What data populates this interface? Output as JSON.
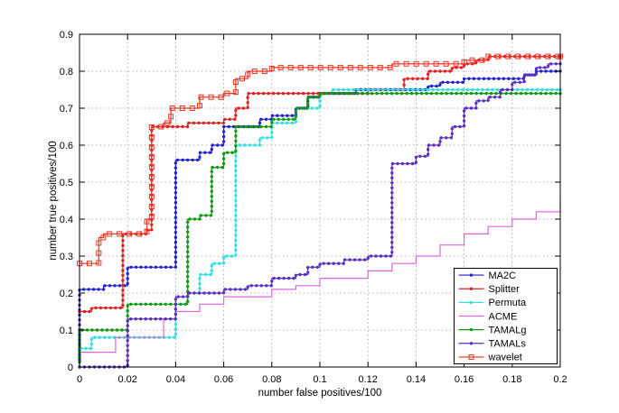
{
  "figure": {
    "background": "#ffffff",
    "axes_border_color": "#000000",
    "grid_color": "#9a9a9a"
  },
  "chart_data": {
    "type": "line",
    "step": true,
    "title": "",
    "xlabel": "number false positives/100",
    "ylabel": "number true positives/100",
    "xlim": [
      0,
      0.2
    ],
    "ylim": [
      0,
      0.9
    ],
    "grid": true,
    "legend_position": "lower right",
    "xticks": [
      0,
      0.02,
      0.04,
      0.06,
      0.08,
      0.1,
      0.12,
      0.14,
      0.16,
      0.18,
      0.2
    ],
    "xtick_labels": [
      "0",
      "0.02",
      "0.04",
      "0.06",
      "0.08",
      "0.1",
      "0.12",
      "0.14",
      "0.16",
      "0.18",
      "0.2"
    ],
    "yticks": [
      0,
      0.1,
      0.2,
      0.3,
      0.4,
      0.5,
      0.6,
      0.7,
      0.8,
      0.9
    ],
    "ytick_labels": [
      "0",
      "0.1",
      "0.2",
      "0.3",
      "0.4",
      "0.5",
      "0.6",
      "0.7",
      "0.8",
      "0.9"
    ],
    "series": [
      {
        "name": "MA2C",
        "color": "#2222cc",
        "marker": "dot",
        "points": [
          [
            0,
            0.02
          ],
          [
            0,
            0.21
          ],
          [
            0.01,
            0.21
          ],
          [
            0.01,
            0.22
          ],
          [
            0.02,
            0.22
          ],
          [
            0.02,
            0.27
          ],
          [
            0.04,
            0.27
          ],
          [
            0.04,
            0.56
          ],
          [
            0.05,
            0.56
          ],
          [
            0.05,
            0.58
          ],
          [
            0.055,
            0.58
          ],
          [
            0.055,
            0.6
          ],
          [
            0.06,
            0.6
          ],
          [
            0.06,
            0.65
          ],
          [
            0.075,
            0.65
          ],
          [
            0.075,
            0.67
          ],
          [
            0.08,
            0.67
          ],
          [
            0.08,
            0.68
          ],
          [
            0.09,
            0.68
          ],
          [
            0.09,
            0.7
          ],
          [
            0.095,
            0.7
          ],
          [
            0.095,
            0.73
          ],
          [
            0.1,
            0.73
          ],
          [
            0.1,
            0.74
          ],
          [
            0.115,
            0.74
          ],
          [
            0.115,
            0.75
          ],
          [
            0.145,
            0.75
          ],
          [
            0.145,
            0.76
          ],
          [
            0.15,
            0.76
          ],
          [
            0.15,
            0.77
          ],
          [
            0.16,
            0.77
          ],
          [
            0.16,
            0.78
          ],
          [
            0.185,
            0.78
          ],
          [
            0.185,
            0.79
          ],
          [
            0.19,
            0.79
          ],
          [
            0.19,
            0.8
          ],
          [
            0.2,
            0.8
          ]
        ]
      },
      {
        "name": "Splitter",
        "color": "#dd2222",
        "marker": "dot",
        "points": [
          [
            0,
            0.15
          ],
          [
            0.005,
            0.15
          ],
          [
            0.005,
            0.16
          ],
          [
            0.018,
            0.16
          ],
          [
            0.018,
            0.36
          ],
          [
            0.028,
            0.36
          ],
          [
            0.028,
            0.37
          ],
          [
            0.03,
            0.37
          ],
          [
            0.03,
            0.65
          ],
          [
            0.045,
            0.65
          ],
          [
            0.045,
            0.66
          ],
          [
            0.06,
            0.66
          ],
          [
            0.06,
            0.67
          ],
          [
            0.065,
            0.67
          ],
          [
            0.065,
            0.7
          ],
          [
            0.07,
            0.7
          ],
          [
            0.07,
            0.74
          ],
          [
            0.12,
            0.74
          ],
          [
            0.12,
            0.75
          ],
          [
            0.135,
            0.75
          ],
          [
            0.135,
            0.78
          ],
          [
            0.145,
            0.78
          ],
          [
            0.145,
            0.8
          ],
          [
            0.155,
            0.8
          ],
          [
            0.155,
            0.81
          ],
          [
            0.16,
            0.81
          ],
          [
            0.16,
            0.82
          ],
          [
            0.165,
            0.82
          ],
          [
            0.165,
            0.83
          ],
          [
            0.17,
            0.83
          ],
          [
            0.17,
            0.84
          ],
          [
            0.2,
            0.84
          ]
        ]
      },
      {
        "name": "Permuta",
        "color": "#3adede",
        "marker": "dot",
        "points": [
          [
            0,
            0
          ],
          [
            0,
            0.05
          ],
          [
            0.005,
            0.05
          ],
          [
            0.005,
            0.08
          ],
          [
            0.04,
            0.08
          ],
          [
            0.04,
            0.17
          ],
          [
            0.045,
            0.17
          ],
          [
            0.045,
            0.2
          ],
          [
            0.05,
            0.2
          ],
          [
            0.05,
            0.25
          ],
          [
            0.055,
            0.25
          ],
          [
            0.055,
            0.28
          ],
          [
            0.06,
            0.28
          ],
          [
            0.06,
            0.3
          ],
          [
            0.065,
            0.3
          ],
          [
            0.065,
            0.6
          ],
          [
            0.075,
            0.6
          ],
          [
            0.075,
            0.62
          ],
          [
            0.08,
            0.62
          ],
          [
            0.08,
            0.66
          ],
          [
            0.09,
            0.66
          ],
          [
            0.09,
            0.7
          ],
          [
            0.1,
            0.7
          ],
          [
            0.1,
            0.74
          ],
          [
            0.105,
            0.74
          ],
          [
            0.105,
            0.75
          ],
          [
            0.2,
            0.75
          ]
        ]
      },
      {
        "name": "ACME",
        "color": "#dd66dd",
        "marker": "none",
        "points": [
          [
            0,
            0.04
          ],
          [
            0.015,
            0.04
          ],
          [
            0.015,
            0.08
          ],
          [
            0.035,
            0.08
          ],
          [
            0.035,
            0.13
          ],
          [
            0.04,
            0.13
          ],
          [
            0.04,
            0.15
          ],
          [
            0.05,
            0.15
          ],
          [
            0.05,
            0.17
          ],
          [
            0.06,
            0.17
          ],
          [
            0.06,
            0.19
          ],
          [
            0.08,
            0.19
          ],
          [
            0.08,
            0.21
          ],
          [
            0.09,
            0.21
          ],
          [
            0.09,
            0.22
          ],
          [
            0.1,
            0.22
          ],
          [
            0.1,
            0.24
          ],
          [
            0.12,
            0.24
          ],
          [
            0.12,
            0.26
          ],
          [
            0.13,
            0.26
          ],
          [
            0.13,
            0.28
          ],
          [
            0.14,
            0.28
          ],
          [
            0.14,
            0.3
          ],
          [
            0.15,
            0.3
          ],
          [
            0.15,
            0.33
          ],
          [
            0.16,
            0.33
          ],
          [
            0.16,
            0.36
          ],
          [
            0.17,
            0.36
          ],
          [
            0.17,
            0.38
          ],
          [
            0.18,
            0.38
          ],
          [
            0.18,
            0.4
          ],
          [
            0.19,
            0.4
          ],
          [
            0.19,
            0.42
          ],
          [
            0.2,
            0.42
          ],
          [
            0.2,
            0.45
          ]
        ]
      },
      {
        "name": "TAMALg",
        "color": "#119911",
        "marker": "dot",
        "points": [
          [
            0,
            0
          ],
          [
            0,
            0.1
          ],
          [
            0.02,
            0.1
          ],
          [
            0.02,
            0.17
          ],
          [
            0.045,
            0.17
          ],
          [
            0.045,
            0.4
          ],
          [
            0.05,
            0.4
          ],
          [
            0.05,
            0.41
          ],
          [
            0.055,
            0.41
          ],
          [
            0.055,
            0.54
          ],
          [
            0.06,
            0.54
          ],
          [
            0.06,
            0.58
          ],
          [
            0.065,
            0.58
          ],
          [
            0.065,
            0.65
          ],
          [
            0.08,
            0.65
          ],
          [
            0.08,
            0.67
          ],
          [
            0.09,
            0.67
          ],
          [
            0.09,
            0.7
          ],
          [
            0.095,
            0.7
          ],
          [
            0.095,
            0.73
          ],
          [
            0.1,
            0.73
          ],
          [
            0.1,
            0.74
          ],
          [
            0.2,
            0.74
          ]
        ]
      },
      {
        "name": "TAMALs",
        "color": "#5b2fbf",
        "marker": "dot",
        "points": [
          [
            0,
            0
          ],
          [
            0.02,
            0
          ],
          [
            0.02,
            0.13
          ],
          [
            0.04,
            0.13
          ],
          [
            0.04,
            0.19
          ],
          [
            0.045,
            0.19
          ],
          [
            0.045,
            0.2
          ],
          [
            0.06,
            0.2
          ],
          [
            0.06,
            0.21
          ],
          [
            0.07,
            0.21
          ],
          [
            0.07,
            0.22
          ],
          [
            0.08,
            0.22
          ],
          [
            0.08,
            0.24
          ],
          [
            0.09,
            0.24
          ],
          [
            0.09,
            0.25
          ],
          [
            0.095,
            0.25
          ],
          [
            0.095,
            0.27
          ],
          [
            0.1,
            0.27
          ],
          [
            0.1,
            0.28
          ],
          [
            0.11,
            0.28
          ],
          [
            0.11,
            0.29
          ],
          [
            0.12,
            0.29
          ],
          [
            0.12,
            0.3
          ],
          [
            0.13,
            0.3
          ],
          [
            0.13,
            0.55
          ],
          [
            0.14,
            0.55
          ],
          [
            0.14,
            0.57
          ],
          [
            0.145,
            0.57
          ],
          [
            0.145,
            0.6
          ],
          [
            0.15,
            0.6
          ],
          [
            0.15,
            0.62
          ],
          [
            0.155,
            0.62
          ],
          [
            0.155,
            0.65
          ],
          [
            0.16,
            0.65
          ],
          [
            0.16,
            0.7
          ],
          [
            0.165,
            0.7
          ],
          [
            0.165,
            0.72
          ],
          [
            0.17,
            0.72
          ],
          [
            0.17,
            0.73
          ],
          [
            0.175,
            0.73
          ],
          [
            0.175,
            0.75
          ],
          [
            0.18,
            0.75
          ],
          [
            0.18,
            0.77
          ],
          [
            0.185,
            0.77
          ],
          [
            0.185,
            0.79
          ],
          [
            0.19,
            0.79
          ],
          [
            0.19,
            0.81
          ],
          [
            0.195,
            0.81
          ],
          [
            0.195,
            0.82
          ],
          [
            0.2,
            0.82
          ]
        ]
      },
      {
        "name": "wavelet",
        "color": "#ee3322",
        "marker": "square",
        "points": [
          [
            0,
            0.28
          ],
          [
            0.008,
            0.28
          ],
          [
            0.008,
            0.35
          ],
          [
            0.01,
            0.35
          ],
          [
            0.01,
            0.36
          ],
          [
            0.028,
            0.36
          ],
          [
            0.028,
            0.4
          ],
          [
            0.03,
            0.4
          ],
          [
            0.03,
            0.65
          ],
          [
            0.035,
            0.65
          ],
          [
            0.035,
            0.66
          ],
          [
            0.038,
            0.66
          ],
          [
            0.038,
            0.7
          ],
          [
            0.05,
            0.7
          ],
          [
            0.05,
            0.73
          ],
          [
            0.06,
            0.73
          ],
          [
            0.06,
            0.74
          ],
          [
            0.065,
            0.74
          ],
          [
            0.065,
            0.78
          ],
          [
            0.07,
            0.78
          ],
          [
            0.07,
            0.8
          ],
          [
            0.08,
            0.8
          ],
          [
            0.08,
            0.81
          ],
          [
            0.13,
            0.81
          ],
          [
            0.13,
            0.82
          ],
          [
            0.16,
            0.82
          ],
          [
            0.16,
            0.83
          ],
          [
            0.17,
            0.83
          ],
          [
            0.17,
            0.84
          ],
          [
            0.2,
            0.84
          ]
        ]
      }
    ]
  }
}
